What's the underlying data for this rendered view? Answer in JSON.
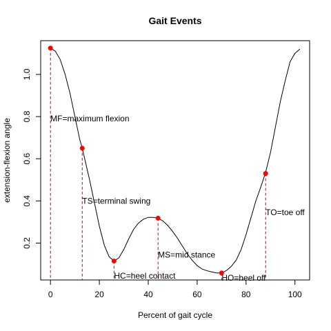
{
  "chart_data": {
    "type": "line",
    "title": "Gait Events",
    "xlabel": "Percent of gait cycle",
    "ylabel": "extension-flexion angle",
    "xlim": [
      -4,
      106
    ],
    "ylim": [
      0.025,
      1.16
    ],
    "xticks": [
      0,
      20,
      40,
      60,
      80,
      100
    ],
    "yticks": [
      0.2,
      0.4,
      0.6,
      0.8,
      1.0
    ],
    "ytick_labels": [
      "0.2",
      "0.4",
      "0.6",
      "0.8",
      "1.0"
    ],
    "grid": false,
    "series": [
      {
        "color": "#000000",
        "x": [
          0,
          2,
          4,
          6,
          8,
          10,
          12,
          13,
          14,
          16,
          18,
          20,
          22,
          24,
          26,
          28,
          30,
          32,
          34,
          36,
          38,
          40,
          42,
          44,
          46,
          48,
          50,
          52,
          54,
          56,
          58,
          60,
          62,
          64,
          66,
          68,
          70,
          72,
          74,
          76,
          78,
          80,
          82,
          84,
          86,
          88,
          90,
          92,
          94,
          96,
          98,
          100,
          102
        ],
        "y": [
          1.125,
          1.11,
          1.07,
          1.0,
          0.91,
          0.8,
          0.69,
          0.65,
          0.6,
          0.5,
          0.39,
          0.28,
          0.19,
          0.135,
          0.115,
          0.13,
          0.17,
          0.22,
          0.265,
          0.295,
          0.313,
          0.322,
          0.322,
          0.318,
          0.305,
          0.283,
          0.255,
          0.222,
          0.185,
          0.148,
          0.118,
          0.093,
          0.077,
          0.069,
          0.063,
          0.058,
          0.058,
          0.07,
          0.09,
          0.12,
          0.17,
          0.24,
          0.32,
          0.4,
          0.465,
          0.535,
          0.63,
          0.75,
          0.87,
          0.97,
          1.06,
          1.1,
          1.12
        ]
      }
    ],
    "events": [
      {
        "x": 0,
        "y": 1.125,
        "label": "MF=maximum flexion",
        "label_y": 0.79
      },
      {
        "x": 13,
        "y": 0.65,
        "label": "TS=terminal swing",
        "label_y": 0.4
      },
      {
        "x": 26,
        "y": 0.115,
        "label": "HC=heel contact",
        "label_y": 0.045
      },
      {
        "x": 44,
        "y": 0.318,
        "label": "MS=mid stance",
        "label_y": 0.145
      },
      {
        "x": 70,
        "y": 0.058,
        "label": "HO=heel off",
        "label_y": 0.035
      },
      {
        "x": 88,
        "y": 0.53,
        "label": "TO=toe off",
        "label_y": 0.345
      }
    ],
    "event_point_color": "#ff0000",
    "event_line_color": "#cc0000"
  }
}
